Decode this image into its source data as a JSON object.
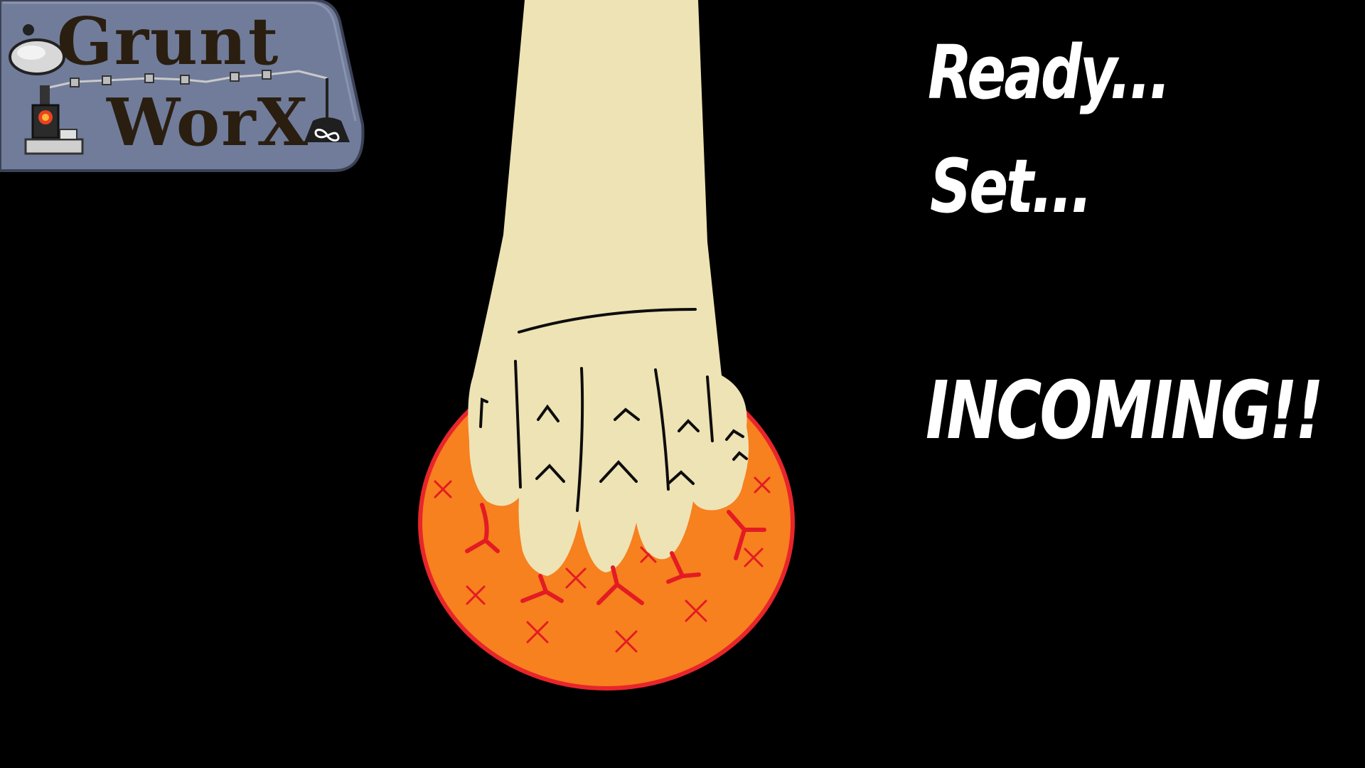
{
  "logo": {
    "word_1": "Grunt",
    "word_2": "WorX",
    "plate_color": "#707c9a",
    "icons": [
      "anvil-icon",
      "furnace-icon",
      "weight-icon",
      "infinity-icon"
    ]
  },
  "callouts": {
    "ready": "Ready...",
    "set": "Set...",
    "incoming": "INCOMING!!"
  },
  "scene": {
    "background_color": "#000000",
    "limb_color": "#eee3b4",
    "orb_fill_color": "#f7801f",
    "orb_outline_color": "#e8252b",
    "crack_color": "#e31b23",
    "text_color": "#ffffff"
  }
}
